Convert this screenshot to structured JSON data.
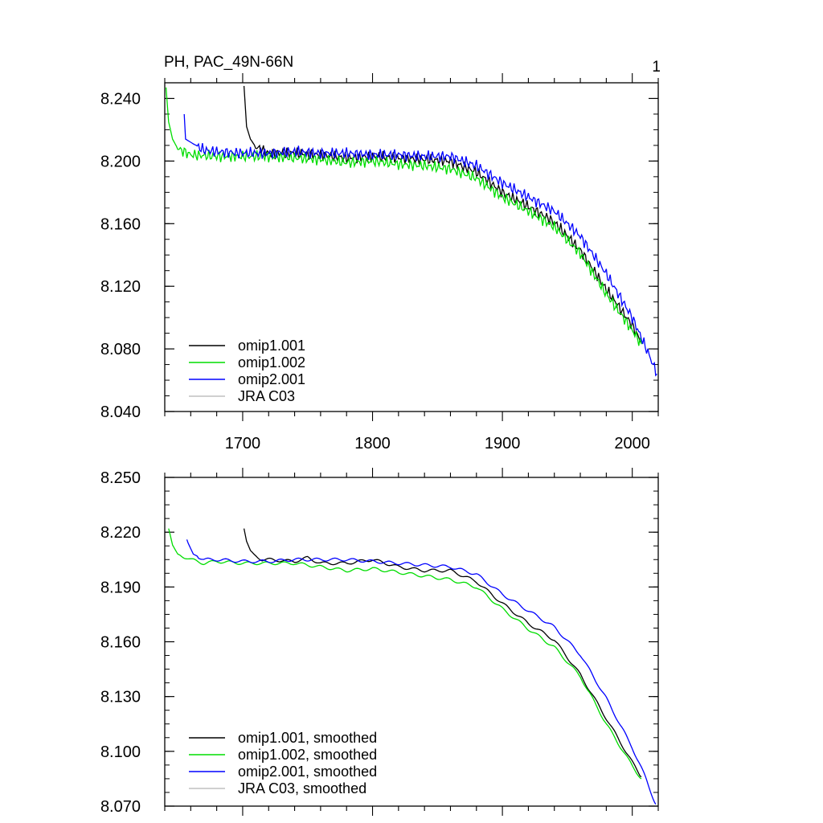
{
  "title_left": "PH, PAC_49N-66N",
  "title_right": "1",
  "chart_data": [
    {
      "type": "line",
      "xlim": [
        1640,
        2020
      ],
      "ylim": [
        8.04,
        8.25
      ],
      "yticks": [
        "8.040",
        "8.080",
        "8.120",
        "8.160",
        "8.200",
        "8.240"
      ],
      "xticks": [
        "1700",
        "1800",
        "1900",
        "2000"
      ],
      "legend_position": "bottom-left",
      "series": [
        {
          "name": "omip1.001",
          "color": "#000000",
          "x": [
            1701,
            1703,
            1706,
            1710,
            1720,
            1740,
            1760,
            1780,
            1800,
            1820,
            1840,
            1860,
            1880,
            1900,
            1920,
            1940,
            1960,
            1980,
            2000,
            2007
          ],
          "y": [
            8.248,
            8.222,
            8.214,
            8.209,
            8.205,
            8.205,
            8.204,
            8.202,
            8.203,
            8.202,
            8.201,
            8.2,
            8.193,
            8.18,
            8.171,
            8.161,
            8.143,
            8.118,
            8.095,
            8.084
          ]
        },
        {
          "name": "omip1.002",
          "color": "#00dd00",
          "x": [
            1641,
            1643,
            1646,
            1650,
            1660,
            1680,
            1700,
            1720,
            1740,
            1760,
            1780,
            1800,
            1820,
            1840,
            1860,
            1880,
            1900,
            1920,
            1940,
            1960,
            1980,
            2000,
            2007
          ],
          "y": [
            8.247,
            8.225,
            8.214,
            8.208,
            8.204,
            8.203,
            8.203,
            8.203,
            8.202,
            8.201,
            8.199,
            8.2,
            8.198,
            8.197,
            8.195,
            8.189,
            8.177,
            8.168,
            8.158,
            8.141,
            8.115,
            8.092,
            8.083
          ]
        },
        {
          "name": "omip2.001",
          "color": "#0000ff",
          "x": [
            1655,
            1656,
            1660,
            1670,
            1680,
            1700,
            1720,
            1740,
            1760,
            1780,
            1800,
            1820,
            1840,
            1860,
            1880,
            1900,
            1920,
            1940,
            1960,
            1980,
            2000,
            2012,
            2019
          ],
          "y": [
            8.23,
            8.214,
            8.212,
            8.207,
            8.206,
            8.205,
            8.205,
            8.206,
            8.205,
            8.205,
            8.204,
            8.204,
            8.203,
            8.203,
            8.197,
            8.186,
            8.177,
            8.168,
            8.152,
            8.128,
            8.1,
            8.078,
            8.064
          ]
        },
        {
          "name": "JRA C03",
          "color": "#c0c0c0",
          "x": [],
          "y": []
        }
      ]
    },
    {
      "type": "line",
      "xlim": [
        1640,
        2020
      ],
      "ylim": [
        8.07,
        8.25
      ],
      "yticks": [
        "8.070",
        "8.100",
        "8.130",
        "8.160",
        "8.190",
        "8.220",
        "8.250"
      ],
      "xticks": [],
      "legend_position": "bottom-left",
      "series": [
        {
          "name": "omip1.001, smoothed",
          "color": "#000000",
          "x": [
            1701,
            1703,
            1706,
            1710,
            1715,
            1720,
            1740,
            1750,
            1760,
            1780,
            1800,
            1820,
            1840,
            1860,
            1880,
            1900,
            1920,
            1940,
            1960,
            1980,
            2000,
            2007
          ],
          "y": [
            8.222,
            8.215,
            8.21,
            8.207,
            8.205,
            8.205,
            8.204,
            8.206,
            8.203,
            8.203,
            8.205,
            8.201,
            8.199,
            8.199,
            8.193,
            8.181,
            8.17,
            8.161,
            8.142,
            8.118,
            8.094,
            8.086
          ]
        },
        {
          "name": "omip1.002, smoothed",
          "color": "#00dd00",
          "x": [
            1643,
            1646,
            1650,
            1660,
            1670,
            1680,
            1700,
            1720,
            1740,
            1760,
            1780,
            1800,
            1820,
            1840,
            1860,
            1880,
            1900,
            1920,
            1940,
            1960,
            1980,
            2000,
            2007
          ],
          "y": [
            8.222,
            8.213,
            8.208,
            8.205,
            8.203,
            8.204,
            8.203,
            8.203,
            8.203,
            8.201,
            8.199,
            8.2,
            8.198,
            8.196,
            8.194,
            8.19,
            8.178,
            8.167,
            8.157,
            8.141,
            8.115,
            8.092,
            8.085
          ]
        },
        {
          "name": "omip2.001, smoothed",
          "color": "#0000ff",
          "x": [
            1657,
            1658,
            1662,
            1670,
            1680,
            1700,
            1720,
            1740,
            1760,
            1780,
            1800,
            1820,
            1840,
            1860,
            1880,
            1900,
            1920,
            1940,
            1960,
            1980,
            2000,
            2010,
            2018
          ],
          "y": [
            8.216,
            8.214,
            8.208,
            8.205,
            8.205,
            8.204,
            8.204,
            8.205,
            8.205,
            8.205,
            8.204,
            8.203,
            8.202,
            8.201,
            8.197,
            8.186,
            8.177,
            8.168,
            8.153,
            8.129,
            8.102,
            8.086,
            8.071
          ]
        },
        {
          "name": "JRA C03, smoothed",
          "color": "#c0c0c0",
          "x": [],
          "y": []
        }
      ]
    }
  ]
}
